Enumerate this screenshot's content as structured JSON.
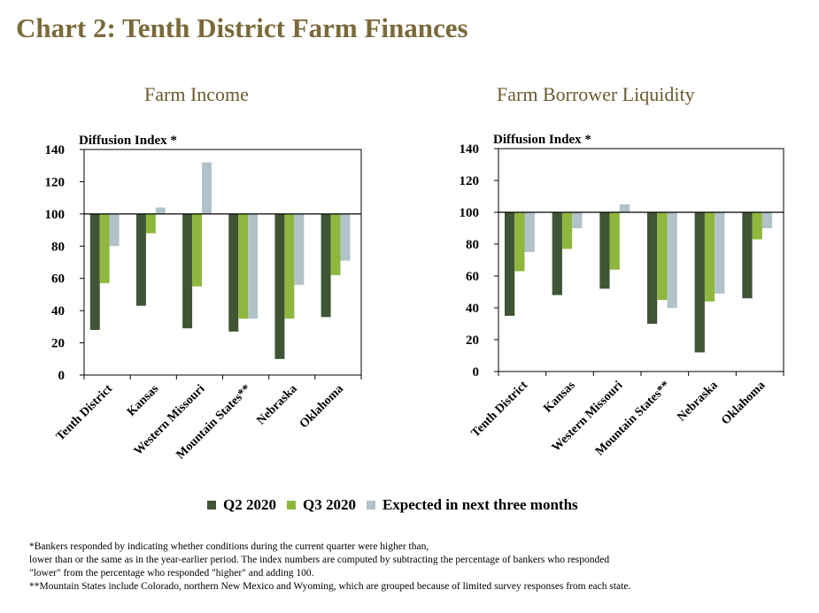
{
  "title": "Chart 2: Tenth District Farm Finances",
  "colors": {
    "q2": "#3f5535",
    "q3": "#8fb73e",
    "expected": "#b2c2c9",
    "title": "#7a6a3a",
    "subtitle": "#6b5a2e"
  },
  "legend": [
    "Q2 2020",
    "Q3 2020",
    "Expected in next three months"
  ],
  "chart_data": [
    {
      "type": "bar",
      "title": "Farm Income",
      "ylabel": "Diffusion  Index  *",
      "ylim": [
        0,
        140
      ],
      "yticks": [
        0,
        20,
        40,
        60,
        80,
        100,
        120,
        140
      ],
      "baseline": 100,
      "categories": [
        "Tenth District",
        "Kansas",
        "Western Missouri",
        "Mountain States**",
        "Nebraska",
        "Oklahoma"
      ],
      "series": [
        {
          "name": "Q2 2020",
          "values": [
            28,
            43,
            29,
            27,
            10,
            36
          ]
        },
        {
          "name": "Q3 2020",
          "values": [
            57,
            88,
            55,
            35,
            35,
            62
          ]
        },
        {
          "name": "Expected in next three months",
          "values": [
            80,
            104,
            132,
            35,
            56,
            71
          ]
        }
      ]
    },
    {
      "type": "bar",
      "title": "Farm Borrower Liquidity",
      "ylabel": "Diffusion  Index  *",
      "ylim": [
        0,
        140
      ],
      "yticks": [
        0,
        20,
        40,
        60,
        80,
        100,
        120,
        140
      ],
      "baseline": 100,
      "categories": [
        "Tenth District",
        "Kansas",
        "Western Missouri",
        "Mountain States**",
        "Nebraska",
        "Oklahoma"
      ],
      "series": [
        {
          "name": "Q2 2020",
          "values": [
            35,
            48,
            52,
            30,
            12,
            46
          ]
        },
        {
          "name": "Q3 2020",
          "values": [
            63,
            77,
            64,
            45,
            44,
            83
          ]
        },
        {
          "name": "Expected in next three months",
          "values": [
            75,
            90,
            105,
            40,
            49,
            90
          ]
        }
      ]
    }
  ],
  "footnotes": [
    "*Bankers responded by indicating whether conditions during the current quarter were higher than,",
    "lower than or the same as in the year-earlier period. The index numbers are computed by subtracting the percentage of bankers who responded",
    "\"lower\"  from the percentage who responded \"higher\"  and adding 100.",
    "**Mountain States include Colorado, northern New Mexico and Wyoming, which are grouped because of limited  survey responses from each state."
  ]
}
